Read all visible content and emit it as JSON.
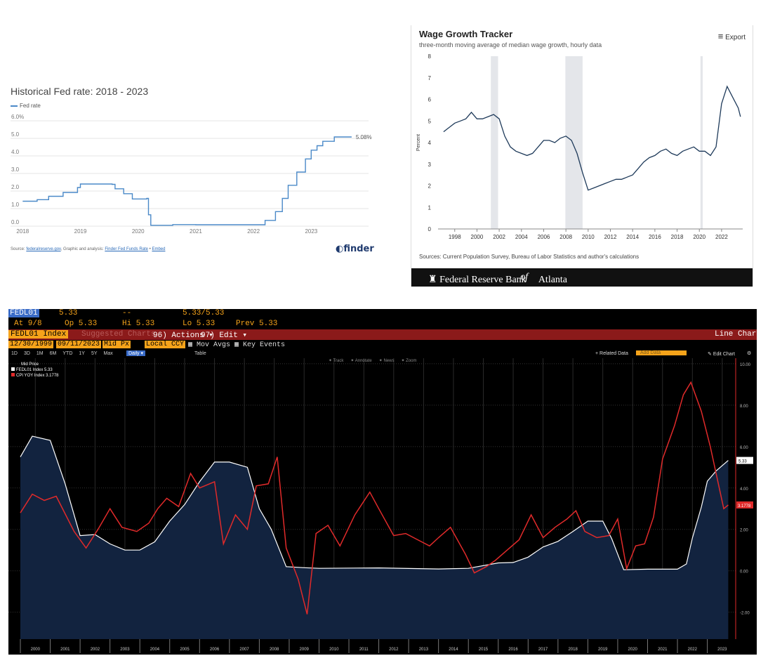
{
  "colors": {
    "fed_blue": "#4a89c8",
    "atl_line": "#1e3a5a",
    "bb_red": "#e02a2a",
    "bb_white": "#ffffff",
    "bb_fill": "#12233f",
    "bb_orange": "#f5a31a",
    "bb_bar": "#8b1a1a"
  },
  "panel1": {
    "title": "Historical Fed rate: 2018 - 2023",
    "legend": "Fed rate",
    "end_label": "5.08%",
    "source_prefix": "Source: ",
    "source_link": "federalreserve.gov",
    "source_mid": ", Graphic and analysis: ",
    "source_link2": "Finder Fed Funds Rate",
    "source_sep": " • ",
    "source_link3": "Embed",
    "logo": "finder",
    "logo_icon": "finder-logo-icon"
  },
  "panel2": {
    "title": "Wage Growth Tracker",
    "subtitle": "three-month moving average of median wage growth, hourly data",
    "export_label": "Export",
    "export_icon": "hamburger-menu-icon",
    "ylabel": "Percent",
    "source": "Sources: Current Population Survey, Bureau of Labor Statistics and author's calculations",
    "footer": "Federal Reserve Bank",
    "footer_of": "of",
    "footer_end": "Atlanta",
    "footer_icon": "eagle-icon"
  },
  "panel3": {
    "ticker": "FEDL01",
    "last": "5.33",
    "dashes": "--",
    "bidask": "5.33/5.33",
    "at": "At 9/8",
    "op": "Op 5.33",
    "hi": "Hi 5.33",
    "lo": "Lo 5.33",
    "prev": "Prev 5.33",
    "index_label": "FEDL01 Index",
    "suggested": "Suggested Charts",
    "actions": "96) Actions ▾",
    "edit": "97) Edit ▾",
    "chart_kind": "Line Chart",
    "start_date": "12/30/1999",
    "end_date": "09/11/2023",
    "price_field": "Mid Px",
    "currency": "Local CCY",
    "mov_avgs": "Mov Avgs",
    "key_events": "Key Events",
    "periods": [
      "1D",
      "3D",
      "1M",
      "6M",
      "YTD",
      "1Y",
      "5Y",
      "Max"
    ],
    "freq": "Daily ▾",
    "table": "Table",
    "related": "+ Related Data",
    "add_data": "Add Data",
    "edit_chart": "Edit Chart",
    "tools": [
      "Track",
      "Annotate",
      "News",
      "Zoom"
    ],
    "legend_header": "Mid Price",
    "legend_white": "FEDL01 Index  5.33",
    "legend_red": "CPI YOY Index 3.1778",
    "tag_white": "5.33",
    "tag_red": "3.1778"
  },
  "chart_data": [
    {
      "type": "line",
      "title": "Historical Fed rate: 2018 - 2023",
      "series": [
        {
          "name": "Fed rate",
          "points": [
            [
              2018.0,
              1.42
            ],
            [
              2018.1,
              1.42
            ],
            [
              2018.25,
              1.51
            ],
            [
              2018.45,
              1.7
            ],
            [
              2018.7,
              1.92
            ],
            [
              2018.95,
              2.2
            ],
            [
              2019.0,
              2.4
            ],
            [
              2019.55,
              2.38
            ],
            [
              2019.6,
              2.13
            ],
            [
              2019.75,
              1.85
            ],
            [
              2019.9,
              1.55
            ],
            [
              2020.15,
              1.58
            ],
            [
              2020.18,
              0.65
            ],
            [
              2020.22,
              0.05
            ],
            [
              2020.6,
              0.09
            ],
            [
              2021.0,
              0.08
            ],
            [
              2021.5,
              0.08
            ],
            [
              2022.0,
              0.08
            ],
            [
              2022.2,
              0.33
            ],
            [
              2022.38,
              0.83
            ],
            [
              2022.5,
              1.58
            ],
            [
              2022.6,
              2.33
            ],
            [
              2022.75,
              3.08
            ],
            [
              2022.9,
              3.83
            ],
            [
              2023.0,
              4.33
            ],
            [
              2023.1,
              4.58
            ],
            [
              2023.2,
              4.83
            ],
            [
              2023.4,
              5.08
            ],
            [
              2023.7,
              5.08
            ]
          ]
        }
      ],
      "xlim": [
        2017.85,
        2023.75
      ],
      "ylim": [
        0,
        6
      ],
      "yticks": [
        "0.0",
        "1.0",
        "2.0",
        "3.0",
        "4.0",
        "5.0",
        "6.0%"
      ],
      "xticks": [
        "2018",
        "2019",
        "2020",
        "2021",
        "2022",
        "2023"
      ],
      "grid": true,
      "legend_position": "top-left"
    },
    {
      "type": "line",
      "title": "Wage Growth Tracker",
      "ylabel": "Percent",
      "recessions": [
        [
          2001.25,
          2001.9
        ],
        [
          2007.95,
          2009.5
        ],
        [
          2020.1,
          2020.3
        ]
      ],
      "series": [
        {
          "name": "Wage growth",
          "points": [
            [
              1997.0,
              4.5
            ],
            [
              1997.5,
              4.7
            ],
            [
              1998.0,
              4.9
            ],
            [
              1998.5,
              5.0
            ],
            [
              1999.0,
              5.1
            ],
            [
              1999.5,
              5.4
            ],
            [
              2000.0,
              5.1
            ],
            [
              2000.5,
              5.1
            ],
            [
              2001.0,
              5.2
            ],
            [
              2001.5,
              5.3
            ],
            [
              2002.0,
              5.1
            ],
            [
              2002.5,
              4.3
            ],
            [
              2003.0,
              3.8
            ],
            [
              2003.5,
              3.6
            ],
            [
              2004.0,
              3.5
            ],
            [
              2004.5,
              3.4
            ],
            [
              2005.0,
              3.5
            ],
            [
              2005.5,
              3.8
            ],
            [
              2006.0,
              4.1
            ],
            [
              2006.5,
              4.1
            ],
            [
              2007.0,
              4.0
            ],
            [
              2007.5,
              4.2
            ],
            [
              2008.0,
              4.3
            ],
            [
              2008.5,
              4.1
            ],
            [
              2009.0,
              3.5
            ],
            [
              2009.5,
              2.6
            ],
            [
              2010.0,
              1.8
            ],
            [
              2010.5,
              1.9
            ],
            [
              2011.0,
              2.0
            ],
            [
              2011.5,
              2.1
            ],
            [
              2012.0,
              2.2
            ],
            [
              2012.5,
              2.3
            ],
            [
              2013.0,
              2.3
            ],
            [
              2013.5,
              2.4
            ],
            [
              2014.0,
              2.5
            ],
            [
              2014.5,
              2.8
            ],
            [
              2015.0,
              3.1
            ],
            [
              2015.5,
              3.3
            ],
            [
              2016.0,
              3.4
            ],
            [
              2016.5,
              3.6
            ],
            [
              2017.0,
              3.7
            ],
            [
              2017.5,
              3.5
            ],
            [
              2018.0,
              3.4
            ],
            [
              2018.5,
              3.6
            ],
            [
              2019.0,
              3.7
            ],
            [
              2019.5,
              3.8
            ],
            [
              2020.0,
              3.6
            ],
            [
              2020.5,
              3.6
            ],
            [
              2021.0,
              3.4
            ],
            [
              2021.5,
              3.8
            ],
            [
              2022.0,
              5.8
            ],
            [
              2022.5,
              6.6
            ],
            [
              2023.0,
              6.1
            ],
            [
              2023.5,
              5.6
            ],
            [
              2023.7,
              5.2
            ]
          ]
        }
      ],
      "xlim": [
        1996.5,
        2023.9
      ],
      "ylim": [
        0,
        8
      ],
      "yticks": [
        "0",
        "1",
        "2",
        "3",
        "4",
        "5",
        "6",
        "7",
        "8"
      ],
      "xticks": [
        "1998",
        "2000",
        "2002",
        "2004",
        "2006",
        "2008",
        "2010",
        "2012",
        "2014",
        "2016",
        "2018",
        "2020",
        "2022"
      ],
      "grid": false
    },
    {
      "type": "line",
      "series": [
        {
          "name": "FEDL01 Index",
          "points": [
            [
              2000.0,
              5.5
            ],
            [
              2000.4,
              6.5
            ],
            [
              2001.0,
              6.3
            ],
            [
              2001.5,
              4.2
            ],
            [
              2002.0,
              1.7
            ],
            [
              2002.5,
              1.75
            ],
            [
              2003.0,
              1.3
            ],
            [
              2003.5,
              1.0
            ],
            [
              2004.0,
              1.0
            ],
            [
              2004.5,
              1.4
            ],
            [
              2005.0,
              2.4
            ],
            [
              2005.5,
              3.2
            ],
            [
              2006.0,
              4.3
            ],
            [
              2006.5,
              5.25
            ],
            [
              2007.0,
              5.25
            ],
            [
              2007.6,
              5.0
            ],
            [
              2008.0,
              3.0
            ],
            [
              2008.4,
              2.0
            ],
            [
              2008.9,
              0.2
            ],
            [
              2009.5,
              0.15
            ],
            [
              2010.0,
              0.12
            ],
            [
              2012.0,
              0.14
            ],
            [
              2014.0,
              0.09
            ],
            [
              2015.0,
              0.12
            ],
            [
              2016.0,
              0.38
            ],
            [
              2016.5,
              0.4
            ],
            [
              2017.0,
              0.66
            ],
            [
              2017.5,
              1.15
            ],
            [
              2018.0,
              1.42
            ],
            [
              2018.5,
              1.9
            ],
            [
              2019.0,
              2.4
            ],
            [
              2019.5,
              2.4
            ],
            [
              2019.8,
              1.55
            ],
            [
              2020.2,
              0.05
            ],
            [
              2021.0,
              0.08
            ],
            [
              2022.0,
              0.08
            ],
            [
              2022.3,
              0.33
            ],
            [
              2022.5,
              1.58
            ],
            [
              2022.8,
              3.08
            ],
            [
              2023.0,
              4.33
            ],
            [
              2023.3,
              4.83
            ],
            [
              2023.7,
              5.33
            ]
          ]
        },
        {
          "name": "CPI YOY Index",
          "points": [
            [
              2000.0,
              2.8
            ],
            [
              2000.4,
              3.7
            ],
            [
              2000.8,
              3.4
            ],
            [
              2001.2,
              3.6
            ],
            [
              2001.8,
              1.9
            ],
            [
              2002.2,
              1.1
            ],
            [
              2002.6,
              2.0
            ],
            [
              2003.0,
              3.0
            ],
            [
              2003.4,
              2.1
            ],
            [
              2003.9,
              1.9
            ],
            [
              2004.3,
              2.3
            ],
            [
              2004.6,
              3.0
            ],
            [
              2004.9,
              3.5
            ],
            [
              2005.3,
              3.1
            ],
            [
              2005.7,
              4.7
            ],
            [
              2006.0,
              4.0
            ],
            [
              2006.5,
              4.3
            ],
            [
              2006.8,
              1.3
            ],
            [
              2007.2,
              2.7
            ],
            [
              2007.6,
              2.0
            ],
            [
              2007.9,
              4.1
            ],
            [
              2008.3,
              4.2
            ],
            [
              2008.6,
              5.5
            ],
            [
              2008.9,
              1.1
            ],
            [
              2009.3,
              -0.4
            ],
            [
              2009.6,
              -2.1
            ],
            [
              2009.9,
              1.8
            ],
            [
              2010.3,
              2.2
            ],
            [
              2010.7,
              1.2
            ],
            [
              2011.2,
              2.7
            ],
            [
              2011.7,
              3.8
            ],
            [
              2012.0,
              3.0
            ],
            [
              2012.5,
              1.7
            ],
            [
              2012.9,
              1.8
            ],
            [
              2013.3,
              1.5
            ],
            [
              2013.7,
              1.2
            ],
            [
              2014.0,
              1.6
            ],
            [
              2014.4,
              2.1
            ],
            [
              2014.9,
              0.8
            ],
            [
              2015.2,
              -0.1
            ],
            [
              2015.6,
              0.2
            ],
            [
              2015.9,
              0.5
            ],
            [
              2016.3,
              1.0
            ],
            [
              2016.7,
              1.5
            ],
            [
              2017.1,
              2.7
            ],
            [
              2017.5,
              1.6
            ],
            [
              2017.9,
              2.1
            ],
            [
              2018.3,
              2.5
            ],
            [
              2018.6,
              2.9
            ],
            [
              2018.9,
              1.9
            ],
            [
              2019.3,
              1.6
            ],
            [
              2019.7,
              1.7
            ],
            [
              2020.0,
              2.5
            ],
            [
              2020.3,
              0.1
            ],
            [
              2020.6,
              1.2
            ],
            [
              2020.9,
              1.3
            ],
            [
              2021.2,
              2.6
            ],
            [
              2021.5,
              5.4
            ],
            [
              2021.9,
              7.0
            ],
            [
              2022.2,
              8.5
            ],
            [
              2022.45,
              9.1
            ],
            [
              2022.8,
              7.7
            ],
            [
              2023.1,
              6.0
            ],
            [
              2023.4,
              4.0
            ],
            [
              2023.55,
              3.0
            ],
            [
              2023.7,
              3.18
            ]
          ]
        }
      ],
      "xlim": [
        1999.6,
        2023.95
      ],
      "ylim": [
        -3.3,
        10.2
      ],
      "yticks": [
        "-2.00",
        "0.00",
        "2.00",
        "4.00",
        "6.00",
        "8.00",
        "10.00"
      ],
      "xticks": [
        "2000",
        "2001",
        "2002",
        "2003",
        "2004",
        "2005",
        "2006",
        "2007",
        "2008",
        "2009",
        "2010",
        "2011",
        "2012",
        "2013",
        "2014",
        "2015",
        "2016",
        "2017",
        "2018",
        "2019",
        "2020",
        "2021",
        "2022",
        "2023"
      ],
      "grid": true,
      "legend_position": "top-left"
    }
  ]
}
